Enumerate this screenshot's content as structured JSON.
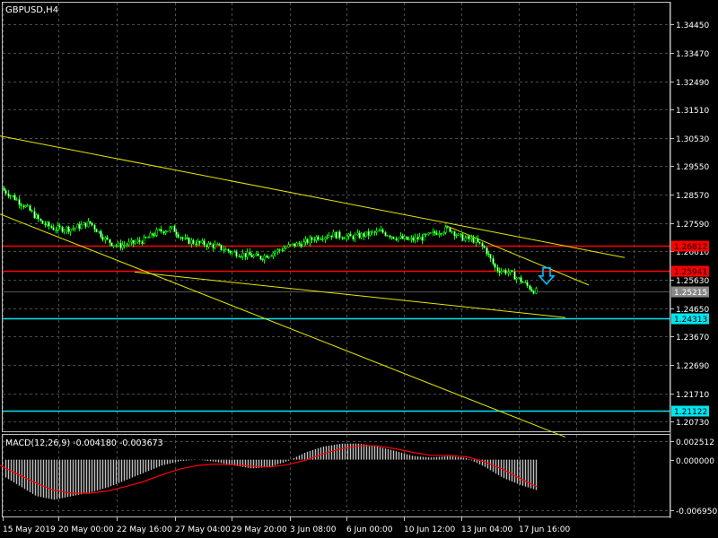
{
  "chart_data": [
    {
      "type": "candlestick",
      "title": "GBPUSD,H4",
      "y_ticks": [
        "1.34450",
        "1.33470",
        "1.32490",
        "1.31510",
        "1.30530",
        "1.29550",
        "1.28570",
        "1.27590",
        "1.26610",
        "1.25630",
        "1.24650",
        "1.23670",
        "1.22690",
        "1.21710",
        "1.20730"
      ],
      "ylim": [
        1.204,
        1.352
      ],
      "x_ticks": [
        "15 May 2019",
        "20 May 00:00",
        "22 May 16:00",
        "27 May 04:00",
        "29 May 20:00",
        "3 Jun 08:00",
        "6 Jun 00:00",
        "10 Jun 12:00",
        "13 Jun 04:00",
        "17 Jun 16:00"
      ],
      "close_path": [
        [
          0,
          1.288
        ],
        [
          14,
          1.285
        ],
        [
          30,
          1.281
        ],
        [
          46,
          1.276
        ],
        [
          60,
          1.274
        ],
        [
          80,
          1.274
        ],
        [
          100,
          1.276
        ],
        [
          118,
          1.27
        ],
        [
          130,
          1.268
        ],
        [
          148,
          1.269
        ],
        [
          160,
          1.27
        ],
        [
          176,
          1.273
        ],
        [
          192,
          1.274
        ],
        [
          205,
          1.27
        ],
        [
          220,
          1.269
        ],
        [
          240,
          1.268
        ],
        [
          256,
          1.266
        ],
        [
          272,
          1.265
        ],
        [
          290,
          1.264
        ],
        [
          306,
          1.266
        ],
        [
          322,
          1.268
        ],
        [
          338,
          1.269
        ],
        [
          352,
          1.271
        ],
        [
          370,
          1.272
        ],
        [
          390,
          1.271
        ],
        [
          408,
          1.272
        ],
        [
          424,
          1.273
        ],
        [
          440,
          1.271
        ],
        [
          456,
          1.27
        ],
        [
          472,
          1.271
        ],
        [
          488,
          1.273
        ],
        [
          500,
          1.274
        ],
        [
          512,
          1.271
        ],
        [
          528,
          1.27
        ],
        [
          540,
          1.267
        ],
        [
          552,
          1.26
        ],
        [
          566,
          1.259
        ],
        [
          580,
          1.256
        ],
        [
          592,
          1.253
        ],
        [
          598,
          1.2521
        ]
      ],
      "horizontal_levels": [
        {
          "value": 1.26812,
          "label": "1.26812",
          "color": "#ff0000"
        },
        {
          "value": 1.25941,
          "label": "1.25941",
          "color": "#ff0000"
        },
        {
          "value": 1.24313,
          "label": "1.24313",
          "color": "#00e5ee"
        },
        {
          "value": 1.21122,
          "label": "1.21122",
          "color": "#00e5ee"
        }
      ],
      "current_price": {
        "value": 1.25215,
        "label": "1.25215",
        "color": "#888888"
      },
      "trendlines": [
        {
          "from": [
            0,
            1.306
          ],
          "to": [
            696,
            1.264
          ]
        },
        {
          "from": [
            0,
            1.279
          ],
          "to": [
            630,
            1.202
          ]
        },
        {
          "from": [
            150,
            1.259
          ],
          "to": [
            630,
            1.2433
          ]
        },
        {
          "from": [
            497,
            1.275
          ],
          "to": [
            656,
            1.2545
          ]
        }
      ],
      "signal_arrow": {
        "x": 609,
        "value": 1.257,
        "direction": "down",
        "color": "#00bfff"
      }
    },
    {
      "type": "bar",
      "title": "MACD(12,26,9) -0.004180 -0.003673",
      "y_ticks": [
        "0.002512",
        "0.000000",
        "-0.006950"
      ],
      "ylim": [
        -0.0078,
        0.0034
      ],
      "histogram_path": [
        [
          0,
          -0.002
        ],
        [
          20,
          -0.0035
        ],
        [
          40,
          -0.005
        ],
        [
          60,
          -0.0055
        ],
        [
          80,
          -0.005
        ],
        [
          100,
          -0.0045
        ],
        [
          120,
          -0.0038
        ],
        [
          140,
          -0.0028
        ],
        [
          160,
          -0.0018
        ],
        [
          180,
          -0.0008
        ],
        [
          200,
          -0.0002
        ],
        [
          220,
          0.0
        ],
        [
          240,
          -0.0003
        ],
        [
          260,
          -0.0008
        ],
        [
          280,
          -0.0012
        ],
        [
          300,
          -0.001
        ],
        [
          320,
          -0.0002
        ],
        [
          340,
          0.001
        ],
        [
          360,
          0.0018
        ],
        [
          380,
          0.0022
        ],
        [
          400,
          0.0022
        ],
        [
          420,
          0.0018
        ],
        [
          440,
          0.0012
        ],
        [
          460,
          0.0005
        ],
        [
          480,
          0.0003
        ],
        [
          500,
          0.0005
        ],
        [
          520,
          0.0002
        ],
        [
          540,
          -0.001
        ],
        [
          560,
          -0.0025
        ],
        [
          580,
          -0.0035
        ],
        [
          598,
          -0.0042
        ]
      ],
      "signal_path": [
        [
          0,
          -0.0008
        ],
        [
          20,
          -0.002
        ],
        [
          40,
          -0.0032
        ],
        [
          60,
          -0.0042
        ],
        [
          80,
          -0.0046
        ],
        [
          100,
          -0.0046
        ],
        [
          120,
          -0.0043
        ],
        [
          140,
          -0.0037
        ],
        [
          160,
          -0.003
        ],
        [
          180,
          -0.0021
        ],
        [
          200,
          -0.0013
        ],
        [
          220,
          -0.0008
        ],
        [
          240,
          -0.0006
        ],
        [
          260,
          -0.0007
        ],
        [
          280,
          -0.0009
        ],
        [
          300,
          -0.001
        ],
        [
          320,
          -0.0007
        ],
        [
          340,
          -0.0001
        ],
        [
          360,
          0.0008
        ],
        [
          380,
          0.0015
        ],
        [
          400,
          0.0019
        ],
        [
          420,
          0.0019
        ],
        [
          440,
          0.0015
        ],
        [
          460,
          0.001
        ],
        [
          480,
          0.0006
        ],
        [
          500,
          0.0006
        ],
        [
          520,
          0.0004
        ],
        [
          540,
          -0.0003
        ],
        [
          560,
          -0.0013
        ],
        [
          580,
          -0.0026
        ],
        [
          598,
          -0.0037
        ]
      ],
      "histogram_color": "#c0c0c0",
      "signal_color": "#ff0000"
    }
  ]
}
